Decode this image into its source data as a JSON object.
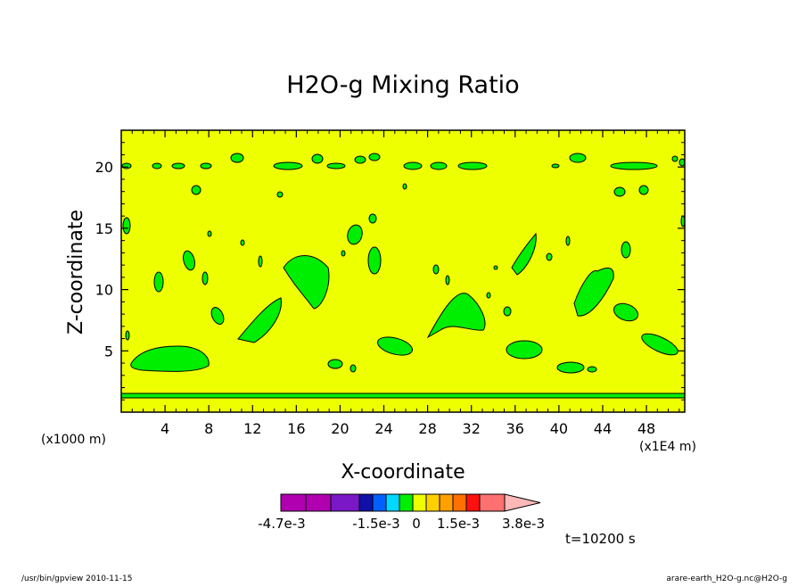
{
  "chart_data": {
    "type": "heatmap",
    "title": "H2O-g Mixing Ratio",
    "xlabel": "X-coordinate",
    "ylabel": "Z-coordinate",
    "x_units_left": "(x1000 m)",
    "x_units_right": "(x1E4 m)",
    "xlim": [
      0,
      51.5
    ],
    "ylim": [
      0,
      23
    ],
    "x_ticks": [
      4,
      8,
      12,
      16,
      20,
      24,
      28,
      32,
      36,
      40,
      44,
      48
    ],
    "y_ticks": [
      5,
      10,
      15,
      20
    ],
    "background_level_color": "#eeff00",
    "contour_fill_color": "#00ee00",
    "contour_line_color": "#000000",
    "colorbar": {
      "colors": [
        "#b000b0",
        "#b000b0",
        "#7a18c8",
        "#1010a8",
        "#0060ff",
        "#00d8ff",
        "#00ee00",
        "#eeff00",
        "#ffd000",
        "#ffa000",
        "#ff7000",
        "#ff1010",
        "#ff7070",
        "#ffb8b8"
      ],
      "labels": [
        "-4.7e-3",
        "-1.5e-3",
        "0",
        "1.5e-3",
        "3.8e-3"
      ]
    },
    "time_label": "t=10200 s",
    "footer_left": "/usr/bin/gpview  2010-11-15",
    "footer_right": "arare-earth_H2O-g.nc@H2O-g"
  }
}
